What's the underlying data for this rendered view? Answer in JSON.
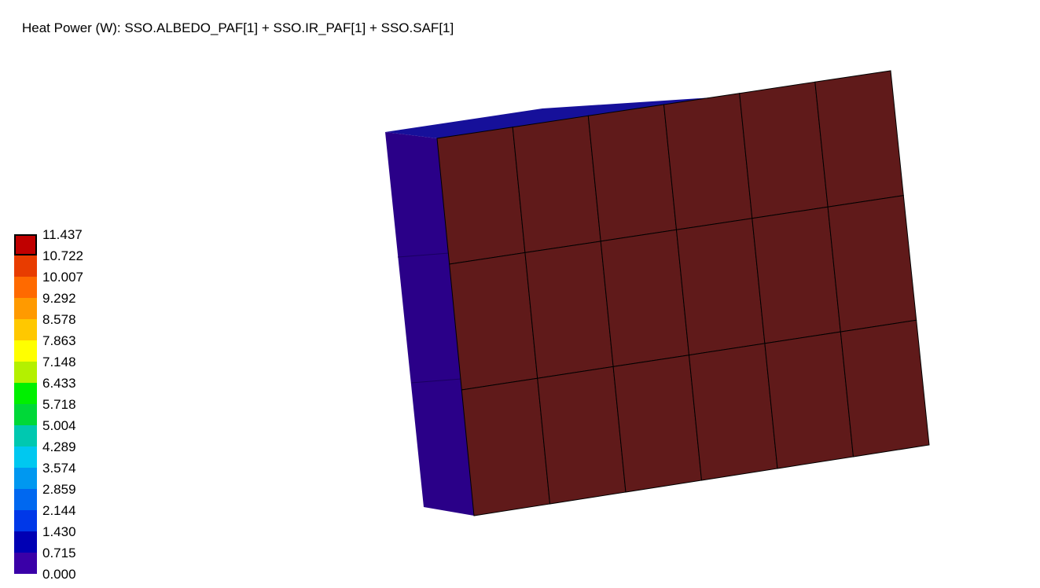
{
  "title": "Heat Power (W): SSO.ALBEDO_PAF[1] + SSO.IR_PAF[1] + SSO.SAF[1]",
  "legend": {
    "values": [
      "11.437",
      "10.722",
      "10.007",
      "9.292",
      "8.578",
      "7.863",
      "7.148",
      "6.433",
      "5.718",
      "5.004",
      "4.289",
      "3.574",
      "2.859",
      "2.144",
      "1.430",
      "0.715",
      "0.000"
    ],
    "colors": [
      "#c00000",
      "#e83c00",
      "#ff6a00",
      "#ff9a00",
      "#ffc800",
      "#ffff00",
      "#b4f000",
      "#00f000",
      "#00d838",
      "#00c8b0",
      "#00c8f0",
      "#0098f0",
      "#0068f0",
      "#0038e8",
      "#0000b4",
      "#3a00a8"
    ]
  },
  "model": {
    "panel_color": "#601a1a",
    "side_color": "#2a0088",
    "top_color": "#16109a",
    "grid_rows": 3,
    "grid_cols": 6
  }
}
